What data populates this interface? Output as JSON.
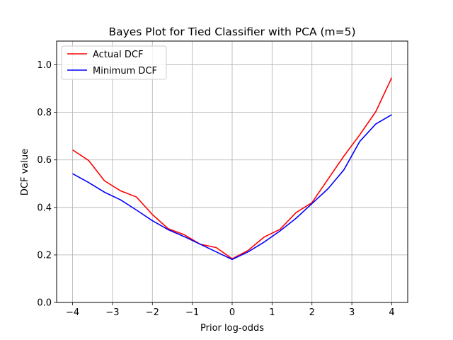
{
  "chart_data": {
    "type": "line",
    "title": "Bayes Plot for Tied Classifier with PCA (m=5)",
    "xlabel": "Prior log-odds",
    "ylabel": "DCF value",
    "xlim": [
      -4.4,
      4.4
    ],
    "ylim": [
      0.0,
      1.1
    ],
    "xticks": [
      -4,
      -3,
      -2,
      -1,
      0,
      1,
      2,
      3,
      4
    ],
    "xtick_labels": [
      "−4",
      "−3",
      "−2",
      "−1",
      "0",
      "1",
      "2",
      "3",
      "4"
    ],
    "yticks": [
      0.0,
      0.2,
      0.4,
      0.6,
      0.8,
      1.0
    ],
    "ytick_labels": [
      "0.0",
      "0.2",
      "0.4",
      "0.6",
      "0.8",
      "1.0"
    ],
    "grid": true,
    "legend_position": "top-left",
    "x": [
      -4.0,
      -3.6,
      -3.2,
      -2.8,
      -2.4,
      -2.0,
      -1.6,
      -1.2,
      -0.8,
      -0.4,
      0.0,
      0.4,
      0.8,
      1.2,
      1.6,
      2.0,
      2.4,
      2.8,
      3.2,
      3.6,
      4.0
    ],
    "series": [
      {
        "name": "Actual DCF",
        "color": "#ff0000",
        "values": [
          0.642,
          0.598,
          0.512,
          0.47,
          0.444,
          0.37,
          0.31,
          0.285,
          0.245,
          0.231,
          0.184,
          0.219,
          0.275,
          0.308,
          0.378,
          0.42,
          0.518,
          0.616,
          0.706,
          0.803,
          0.946
        ]
      },
      {
        "name": "Minimum DCF",
        "color": "#0000ff",
        "values": [
          0.542,
          0.505,
          0.464,
          0.432,
          0.389,
          0.344,
          0.306,
          0.277,
          0.245,
          0.213,
          0.181,
          0.213,
          0.254,
          0.301,
          0.354,
          0.416,
          0.478,
          0.558,
          0.678,
          0.751,
          0.79
        ]
      }
    ]
  }
}
